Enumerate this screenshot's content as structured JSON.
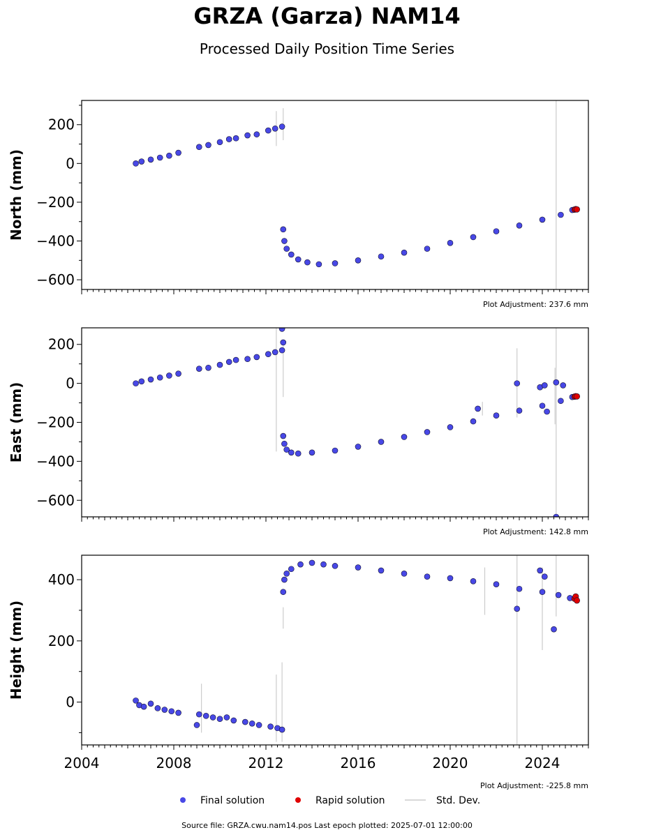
{
  "title": "GRZA (Garza) NAM14",
  "subtitle": "Processed Daily Position Time Series",
  "source_note": "Source file: GRZA.cwu.nam14.pos  Last epoch plotted: 2025-07-01 12:00:00",
  "legend": {
    "items": [
      {
        "label": "Final solution",
        "color": "#4848e6",
        "kind": "marker"
      },
      {
        "label": "Rapid solution",
        "color": "#e00000",
        "kind": "marker"
      },
      {
        "label": "Std. Dev.",
        "color": "#cccccc",
        "kind": "line"
      }
    ]
  },
  "colors": {
    "final": "#4848e6",
    "rapid": "#e00000",
    "stddev": "#cccccc",
    "edge": "#111133"
  },
  "chart_data": [
    {
      "type": "scatter",
      "ylabel": "North (mm)",
      "adjustment": "Plot Adjustment: 237.6 mm",
      "xlim": [
        2004,
        2026
      ],
      "ylim": [
        -650,
        325
      ],
      "yticks": [
        200,
        0,
        -200,
        -400,
        -600
      ],
      "xticks": [
        2004,
        2008,
        2012,
        2016,
        2020,
        2024
      ],
      "show_x_tick_labels": false,
      "series": [
        {
          "kind": "final",
          "x": [
            2006.35,
            2006.6,
            2007.0,
            2007.4,
            2007.8,
            2008.2,
            2009.1,
            2009.5,
            2010.0,
            2010.4,
            2010.7,
            2011.2,
            2011.6,
            2012.1,
            2012.4,
            2012.7,
            2012.75,
            2012.8,
            2012.9,
            2013.1,
            2013.4,
            2013.8,
            2014.3,
            2015.0,
            2016.0,
            2017.0,
            2018.0,
            2019.0,
            2020.0,
            2021.0,
            2022.0,
            2023.0,
            2024.0,
            2024.8,
            2025.3
          ],
          "y": [
            0,
            10,
            20,
            30,
            40,
            55,
            85,
            95,
            110,
            125,
            130,
            145,
            150,
            170,
            180,
            190,
            -340,
            -400,
            -440,
            -470,
            -495,
            -510,
            -520,
            -515,
            -500,
            -480,
            -460,
            -440,
            -410,
            -380,
            -350,
            -320,
            -290,
            -265,
            -240
          ]
        },
        {
          "kind": "rapid",
          "x": [
            2025.4,
            2025.45,
            2025.5
          ],
          "y": [
            -238,
            -236,
            -237
          ]
        }
      ],
      "stddev": [
        {
          "x": 2012.45,
          "y0": 90,
          "y1": 270
        },
        {
          "x": 2012.75,
          "y0": 120,
          "y1": 285
        },
        {
          "x": 2024.6,
          "y0": -650,
          "y1": 325
        }
      ]
    },
    {
      "type": "scatter",
      "ylabel": "East (mm)",
      "adjustment": "Plot Adjustment: 142.8 mm",
      "xlim": [
        2004,
        2026
      ],
      "ylim": [
        -685,
        285
      ],
      "yticks": [
        200,
        0,
        -200,
        -400,
        -600
      ],
      "xticks": [
        2004,
        2008,
        2012,
        2016,
        2020,
        2024
      ],
      "show_x_tick_labels": false,
      "series": [
        {
          "kind": "final",
          "x": [
            2006.35,
            2006.6,
            2007.0,
            2007.4,
            2007.8,
            2008.2,
            2009.1,
            2009.5,
            2010.0,
            2010.4,
            2010.7,
            2011.2,
            2011.6,
            2012.1,
            2012.4,
            2012.7,
            2012.75,
            2012.8,
            2012.9,
            2013.1,
            2013.4,
            2014.0,
            2015.0,
            2016.0,
            2017.0,
            2018.0,
            2019.0,
            2020.0,
            2021.0,
            2022.0,
            2023.0,
            2024.0,
            2024.8,
            2025.3,
            2022.9,
            2023.9,
            2024.1,
            2024.6,
            2024.9,
            2024.2,
            2021.2,
            2012.7,
            2012.75,
            2024.6
          ],
          "y": [
            0,
            10,
            20,
            30,
            40,
            50,
            75,
            80,
            95,
            110,
            120,
            125,
            135,
            150,
            160,
            170,
            -270,
            -310,
            -340,
            -355,
            -360,
            -355,
            -345,
            -325,
            -300,
            -275,
            -250,
            -225,
            -195,
            -165,
            -140,
            -115,
            -90,
            -70,
            0,
            -20,
            -10,
            5,
            -10,
            -145,
            -130,
            280,
            210,
            -685
          ]
        },
        {
          "kind": "rapid",
          "x": [
            2025.4,
            2025.45,
            2025.5
          ],
          "y": [
            -68,
            -66,
            -67
          ]
        }
      ],
      "stddev": [
        {
          "x": 2012.45,
          "y0": -350,
          "y1": 285
        },
        {
          "x": 2012.75,
          "y0": -70,
          "y1": 200
        },
        {
          "x": 2021.4,
          "y0": -165,
          "y1": -95
        },
        {
          "x": 2022.9,
          "y0": -175,
          "y1": 180
        },
        {
          "x": 2024.6,
          "y0": -685,
          "y1": 285
        },
        {
          "x": 2024.55,
          "y0": -210,
          "y1": 80
        }
      ]
    },
    {
      "type": "scatter",
      "ylabel": "Height (mm)",
      "adjustment": "Plot Adjustment: -225.8 mm",
      "xlim": [
        2004,
        2026
      ],
      "ylim": [
        -140,
        480
      ],
      "yticks": [
        400,
        200,
        0
      ],
      "xticks": [
        2004,
        2008,
        2012,
        2016,
        2020,
        2024
      ],
      "show_x_tick_labels": true,
      "series": [
        {
          "kind": "final",
          "x": [
            2006.35,
            2006.5,
            2006.7,
            2007.0,
            2007.3,
            2007.6,
            2007.9,
            2008.2,
            2009.1,
            2009.4,
            2009.7,
            2010.0,
            2010.3,
            2010.6,
            2011.1,
            2011.4,
            2011.7,
            2012.2,
            2012.5,
            2012.7,
            2012.75,
            2012.8,
            2012.9,
            2013.1,
            2013.5,
            2014.0,
            2014.5,
            2015.0,
            2016.0,
            2017.0,
            2018.0,
            2019.0,
            2020.0,
            2021.0,
            2022.0,
            2023.0,
            2024.0,
            2024.7,
            2025.2,
            2022.9,
            2023.9,
            2024.1,
            2024.5,
            2009.0
          ],
          "y": [
            5,
            -10,
            -15,
            -5,
            -20,
            -25,
            -30,
            -35,
            -40,
            -45,
            -50,
            -55,
            -50,
            -60,
            -65,
            -70,
            -75,
            -80,
            -85,
            -90,
            360,
            400,
            420,
            435,
            450,
            455,
            450,
            445,
            440,
            430,
            420,
            410,
            405,
            395,
            385,
            370,
            360,
            350,
            340,
            305,
            430,
            410,
            238,
            -75
          ]
        },
        {
          "kind": "rapid",
          "x": [
            2025.4,
            2025.45,
            2025.5
          ],
          "y": [
            338,
            345,
            332
          ]
        }
      ],
      "stddev": [
        {
          "x": 2009.2,
          "y0": -100,
          "y1": 60
        },
        {
          "x": 2012.45,
          "y0": -130,
          "y1": 90
        },
        {
          "x": 2012.7,
          "y0": -130,
          "y1": 130
        },
        {
          "x": 2012.75,
          "y0": 240,
          "y1": 310
        },
        {
          "x": 2021.5,
          "y0": 285,
          "y1": 440
        },
        {
          "x": 2022.9,
          "y0": -140,
          "y1": 480
        },
        {
          "x": 2024.0,
          "y0": 170,
          "y1": 440
        },
        {
          "x": 2024.6,
          "y0": 280,
          "y1": 480
        }
      ]
    }
  ]
}
